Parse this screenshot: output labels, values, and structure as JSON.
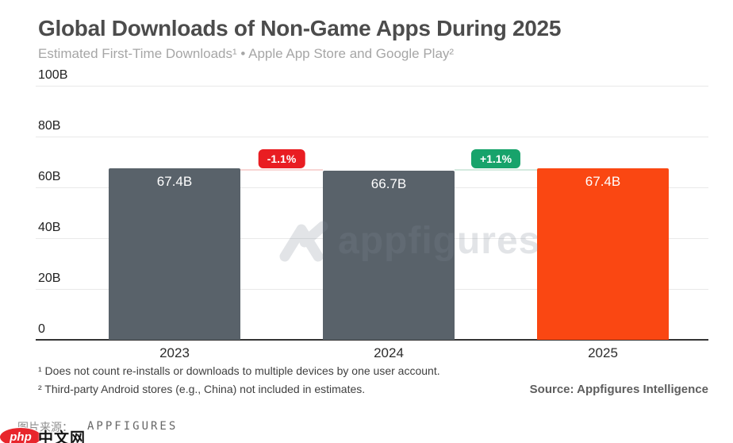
{
  "header": {
    "title": "Global Downloads of Non-Game Apps During 2025",
    "subtitle": "Estimated First-Time Downloads¹ • Apple App Store and Google Play²"
  },
  "chart_data": {
    "type": "bar",
    "title": "Global Downloads of Non-Game Apps During 2025",
    "categories": [
      "2023",
      "2024",
      "2025"
    ],
    "values": [
      67.4,
      66.7,
      67.4
    ],
    "value_labels": [
      "67.4B",
      "66.7B",
      "67.4B"
    ],
    "bar_colors": [
      "#59626a",
      "#59626a",
      "#fa4712"
    ],
    "ylim": [
      0,
      100
    ],
    "yticks": [
      0,
      20,
      40,
      60,
      80,
      100
    ],
    "ytick_labels": [
      "0",
      "20B",
      "40B",
      "60B",
      "80B",
      "100B"
    ],
    "grid": true,
    "legend": false,
    "xlabel": "",
    "ylabel": "",
    "changes": [
      {
        "label": "-1.1%",
        "badge_color": "#e91d22",
        "line_color": "#f8d6d4",
        "between": [
          0,
          1
        ]
      },
      {
        "label": "+1.1%",
        "badge_color": "#17a36b",
        "line_color": "#d4eadf",
        "between": [
          1,
          2
        ]
      }
    ]
  },
  "watermark": {
    "text": "appfigures"
  },
  "footnotes": [
    "¹ Does not count re-installs or downloads to multiple devices by one user account.",
    "² Third-party Android stores (e.g., China) not included in estimates."
  ],
  "source": "Source: Appfigures Intelligence",
  "bottom_bar": {
    "caption": "图片来源：",
    "source_name": "APPFIGURES",
    "logo": {
      "php": "php",
      "cn": "中文网"
    }
  }
}
